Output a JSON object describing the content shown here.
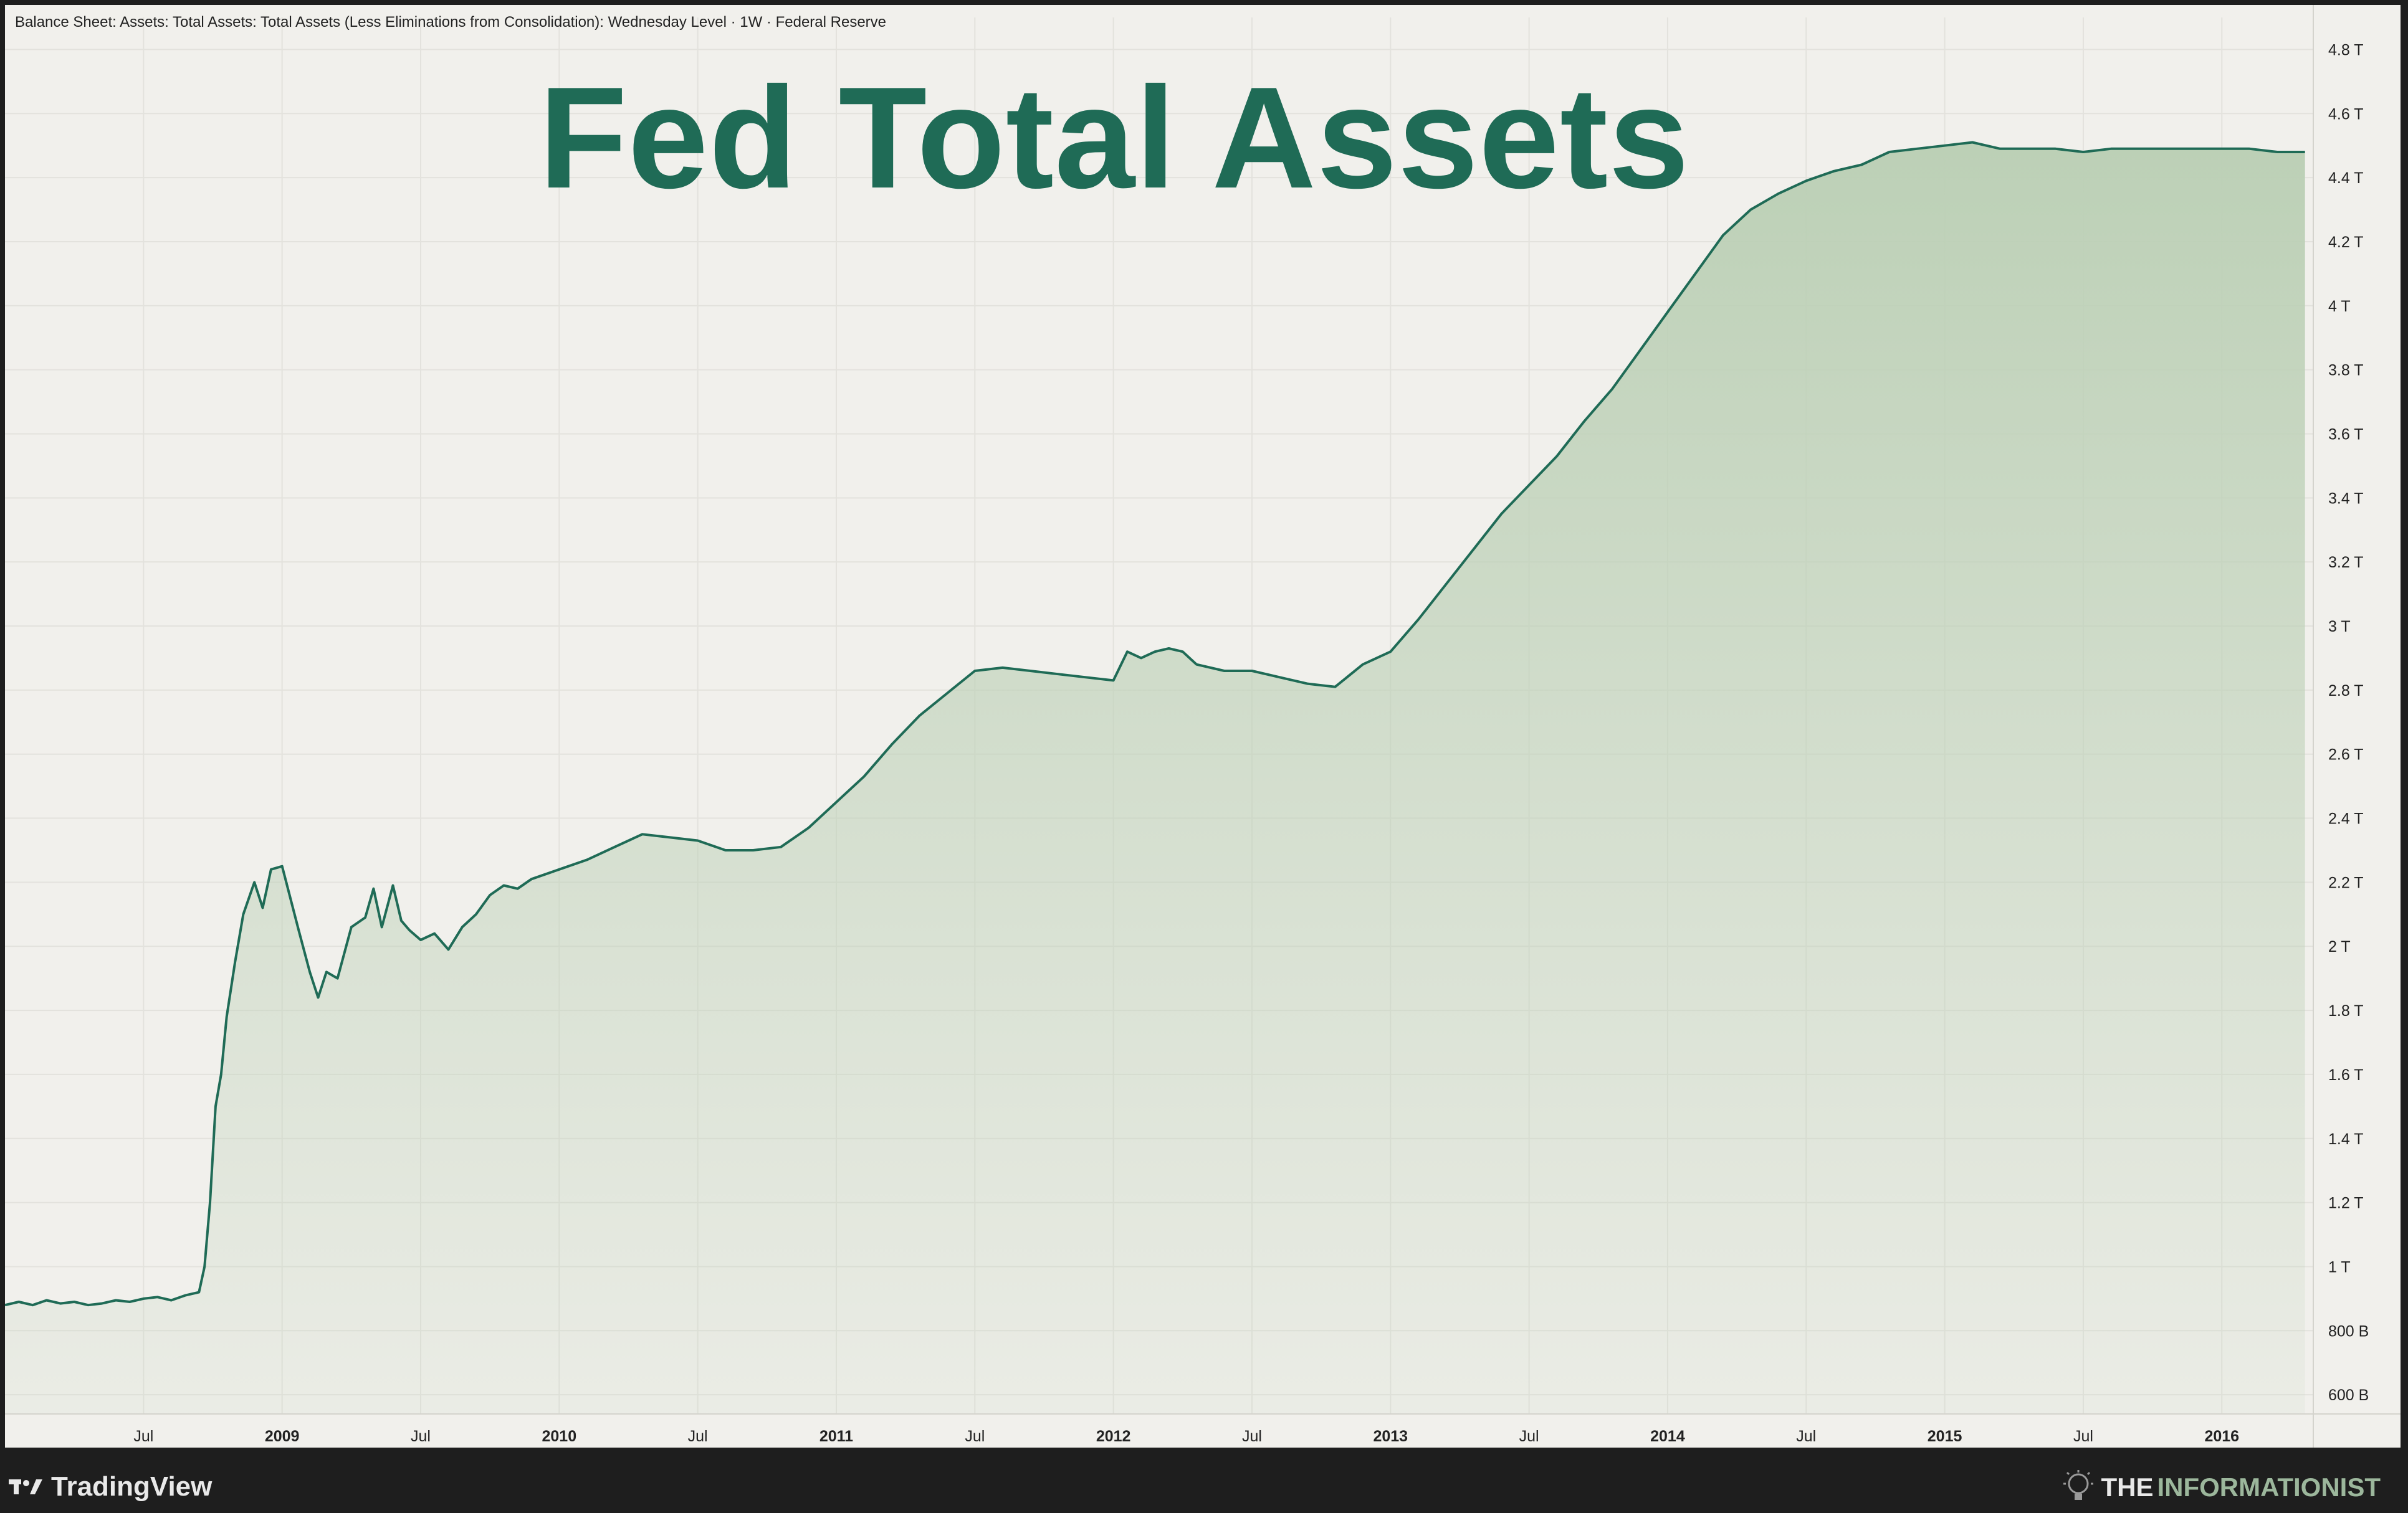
{
  "header": {
    "series_description": "Balance Sheet: Assets: Total Assets: Total Assets (Less Eliminations from Consolidation): Wednesday Level · 1W · Federal Reserve"
  },
  "overlay_title": "Fed Total Assets",
  "footer": {
    "platform": "TradingView",
    "brand_prefix": "THE",
    "brand_name": "INFORMATIONIST"
  },
  "colors": {
    "line": "#1f6b56",
    "fill": "#bcd0b6",
    "background": "#f1f0ec",
    "title": "#1f6b56"
  },
  "chart_data": {
    "type": "area",
    "title": "Fed Total Assets",
    "x_unit": "year (decimal)",
    "y_unit": "USD",
    "ylim": [
      540000000000,
      4900000000000
    ],
    "xlim": [
      2008.0,
      2016.33
    ],
    "grid": true,
    "y_axis_position": "right",
    "y_ticks": [
      {
        "value": 600000000000,
        "label": "600 B"
      },
      {
        "value": 800000000000,
        "label": "800 B"
      },
      {
        "value": 1000000000000,
        "label": "1 T"
      },
      {
        "value": 1200000000000,
        "label": "1.2 T"
      },
      {
        "value": 1400000000000,
        "label": "1.4 T"
      },
      {
        "value": 1600000000000,
        "label": "1.6 T"
      },
      {
        "value": 1800000000000,
        "label": "1.8 T"
      },
      {
        "value": 2000000000000,
        "label": "2 T"
      },
      {
        "value": 2200000000000,
        "label": "2.2 T"
      },
      {
        "value": 2400000000000,
        "label": "2.4 T"
      },
      {
        "value": 2600000000000,
        "label": "2.6 T"
      },
      {
        "value": 2800000000000,
        "label": "2.8 T"
      },
      {
        "value": 3000000000000,
        "label": "3 T"
      },
      {
        "value": 3200000000000,
        "label": "3.2 T"
      },
      {
        "value": 3400000000000,
        "label": "3.4 T"
      },
      {
        "value": 3600000000000,
        "label": "3.6 T"
      },
      {
        "value": 3800000000000,
        "label": "3.8 T"
      },
      {
        "value": 4000000000000,
        "label": "4 T"
      },
      {
        "value": 4200000000000,
        "label": "4.2 T"
      },
      {
        "value": 4400000000000,
        "label": "4.4 T"
      },
      {
        "value": 4600000000000,
        "label": "4.6 T"
      },
      {
        "value": 4800000000000,
        "label": "4.8 T"
      }
    ],
    "x_ticks": [
      {
        "value": 2008.5,
        "label": "Jul",
        "bold": false
      },
      {
        "value": 2009.0,
        "label": "2009",
        "bold": true
      },
      {
        "value": 2009.5,
        "label": "Jul",
        "bold": false
      },
      {
        "value": 2010.0,
        "label": "2010",
        "bold": true
      },
      {
        "value": 2010.5,
        "label": "Jul",
        "bold": false
      },
      {
        "value": 2011.0,
        "label": "2011",
        "bold": true
      },
      {
        "value": 2011.5,
        "label": "Jul",
        "bold": false
      },
      {
        "value": 2012.0,
        "label": "2012",
        "bold": true
      },
      {
        "value": 2012.5,
        "label": "Jul",
        "bold": false
      },
      {
        "value": 2013.0,
        "label": "2013",
        "bold": true
      },
      {
        "value": 2013.5,
        "label": "Jul",
        "bold": false
      },
      {
        "value": 2014.0,
        "label": "2014",
        "bold": true
      },
      {
        "value": 2014.5,
        "label": "Jul",
        "bold": false
      },
      {
        "value": 2015.0,
        "label": "2015",
        "bold": true
      },
      {
        "value": 2015.5,
        "label": "Jul",
        "bold": false
      },
      {
        "value": 2016.0,
        "label": "2016",
        "bold": true
      }
    ],
    "series": [
      {
        "x": [
          2008.0,
          2008.05,
          2008.1,
          2008.15,
          2008.2,
          2008.25,
          2008.3,
          2008.35,
          2008.4,
          2008.45,
          2008.5,
          2008.55,
          2008.6,
          2008.65,
          2008.7,
          2008.72,
          2008.74,
          2008.76,
          2008.78,
          2008.8,
          2008.83,
          2008.86,
          2008.9,
          2008.93,
          2008.96,
          2009.0,
          2009.03,
          2009.06,
          2009.1,
          2009.13,
          2009.16,
          2009.2,
          2009.25,
          2009.3,
          2009.33,
          2009.36,
          2009.4,
          2009.43,
          2009.46,
          2009.5,
          2009.55,
          2009.6,
          2009.65,
          2009.7,
          2009.75,
          2009.8,
          2009.85,
          2009.9,
          2010.0,
          2010.1,
          2010.2,
          2010.3,
          2010.4,
          2010.5,
          2010.6,
          2010.7,
          2010.8,
          2010.9,
          2011.0,
          2011.1,
          2011.2,
          2011.3,
          2011.4,
          2011.5,
          2011.6,
          2011.7,
          2011.8,
          2011.9,
          2012.0,
          2012.05,
          2012.1,
          2012.15,
          2012.2,
          2012.25,
          2012.3,
          2012.4,
          2012.5,
          2012.6,
          2012.7,
          2012.8,
          2012.9,
          2013.0,
          2013.1,
          2013.2,
          2013.3,
          2013.4,
          2013.5,
          2013.6,
          2013.7,
          2013.8,
          2013.9,
          2014.0,
          2014.1,
          2014.2,
          2014.3,
          2014.4,
          2014.5,
          2014.6,
          2014.7,
          2014.8,
          2014.9,
          2015.0,
          2015.1,
          2015.2,
          2015.3,
          2015.4,
          2015.5,
          2015.6,
          2015.7,
          2015.8,
          2015.9,
          2016.0,
          2016.1,
          2016.2,
          2016.3
        ],
        "values": [
          880000000000,
          890000000000,
          880000000000,
          895000000000,
          885000000000,
          890000000000,
          880000000000,
          885000000000,
          895000000000,
          890000000000,
          900000000000,
          905000000000,
          895000000000,
          910000000000,
          920000000000,
          1000000000000,
          1200000000000,
          1500000000000,
          1600000000000,
          1780000000000,
          1950000000000,
          2100000000000,
          2200000000000,
          2120000000000,
          2240000000000,
          2250000000000,
          2150000000000,
          2050000000000,
          1920000000000,
          1840000000000,
          1920000000000,
          1900000000000,
          2060000000000,
          2090000000000,
          2180000000000,
          2060000000000,
          2190000000000,
          2080000000000,
          2050000000000,
          2020000000000,
          2040000000000,
          1990000000000,
          2060000000000,
          2100000000000,
          2160000000000,
          2190000000000,
          2180000000000,
          2210000000000,
          2240000000000,
          2270000000000,
          2310000000000,
          2350000000000,
          2340000000000,
          2330000000000,
          2300000000000,
          2300000000000,
          2310000000000,
          2370000000000,
          2450000000000,
          2530000000000,
          2630000000000,
          2720000000000,
          2790000000000,
          2860000000000,
          2870000000000,
          2860000000000,
          2850000000000,
          2840000000000,
          2830000000000,
          2920000000000,
          2900000000000,
          2920000000000,
          2930000000000,
          2920000000000,
          2880000000000,
          2860000000000,
          2860000000000,
          2840000000000,
          2820000000000,
          2810000000000,
          2880000000000,
          2920000000000,
          3020000000000,
          3130000000000,
          3240000000000,
          3350000000000,
          3440000000000,
          3530000000000,
          3640000000000,
          3740000000000,
          3860000000000,
          3980000000000,
          4100000000000,
          4220000000000,
          4300000000000,
          4350000000000,
          4390000000000,
          4420000000000,
          4440000000000,
          4480000000000,
          4490000000000,
          4500000000000,
          4510000000000,
          4490000000000,
          4490000000000,
          4490000000000,
          4480000000000,
          4490000000000,
          4490000000000,
          4490000000000,
          4490000000000,
          4490000000000,
          4490000000000,
          4480000000000,
          4480000000000
        ]
      }
    ]
  }
}
